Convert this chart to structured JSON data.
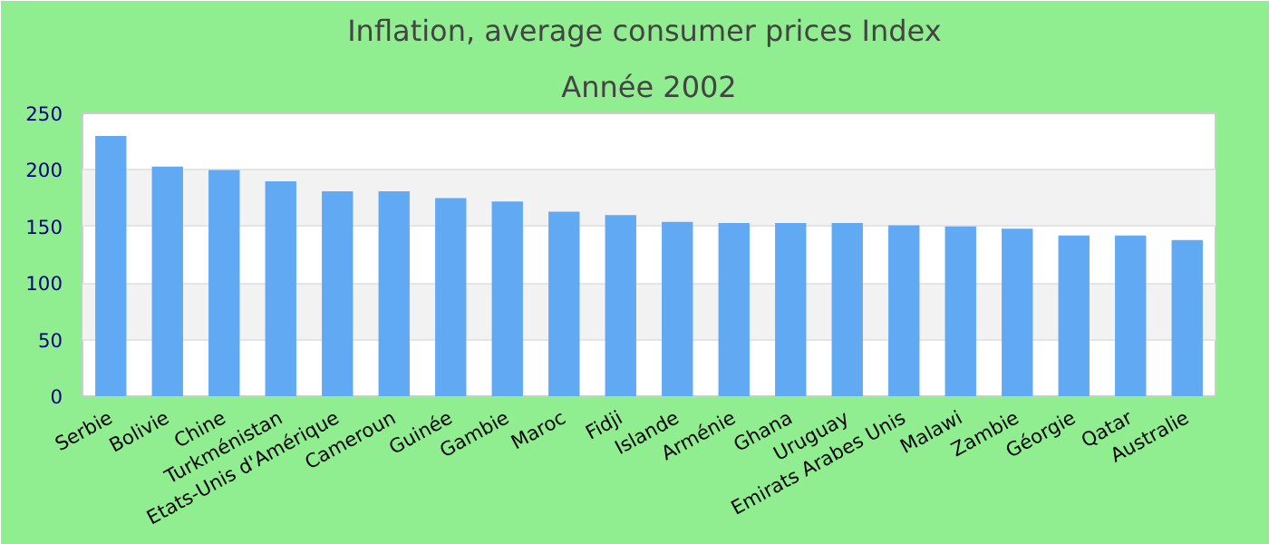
{
  "chart_data": {
    "type": "bar",
    "title": "Inflation, average consumer prices  Index",
    "subtitle": "Année 2002",
    "categories": [
      "Serbie",
      "Bolivie",
      "Chine",
      "Turkménistan",
      "Etats-Unis d'Amérique",
      "Cameroun",
      "Guinée",
      "Gambie",
      "Maroc",
      "Fidji",
      "Islande",
      "Arménie",
      "Ghana",
      "Uruguay",
      "Emirats Arabes Unis",
      "Malawi",
      "Zambie",
      "Géorgie",
      "Qatar",
      "Australie"
    ],
    "values": [
      230,
      203,
      200,
      190,
      181,
      181,
      175,
      172,
      163,
      160,
      154,
      153,
      153,
      153,
      151,
      150,
      148,
      142,
      142,
      138
    ],
    "color": "#61a9f3",
    "ylim": [
      0,
      250
    ],
    "yticks": [
      0,
      50,
      100,
      150,
      200,
      250
    ],
    "grid": "y"
  }
}
